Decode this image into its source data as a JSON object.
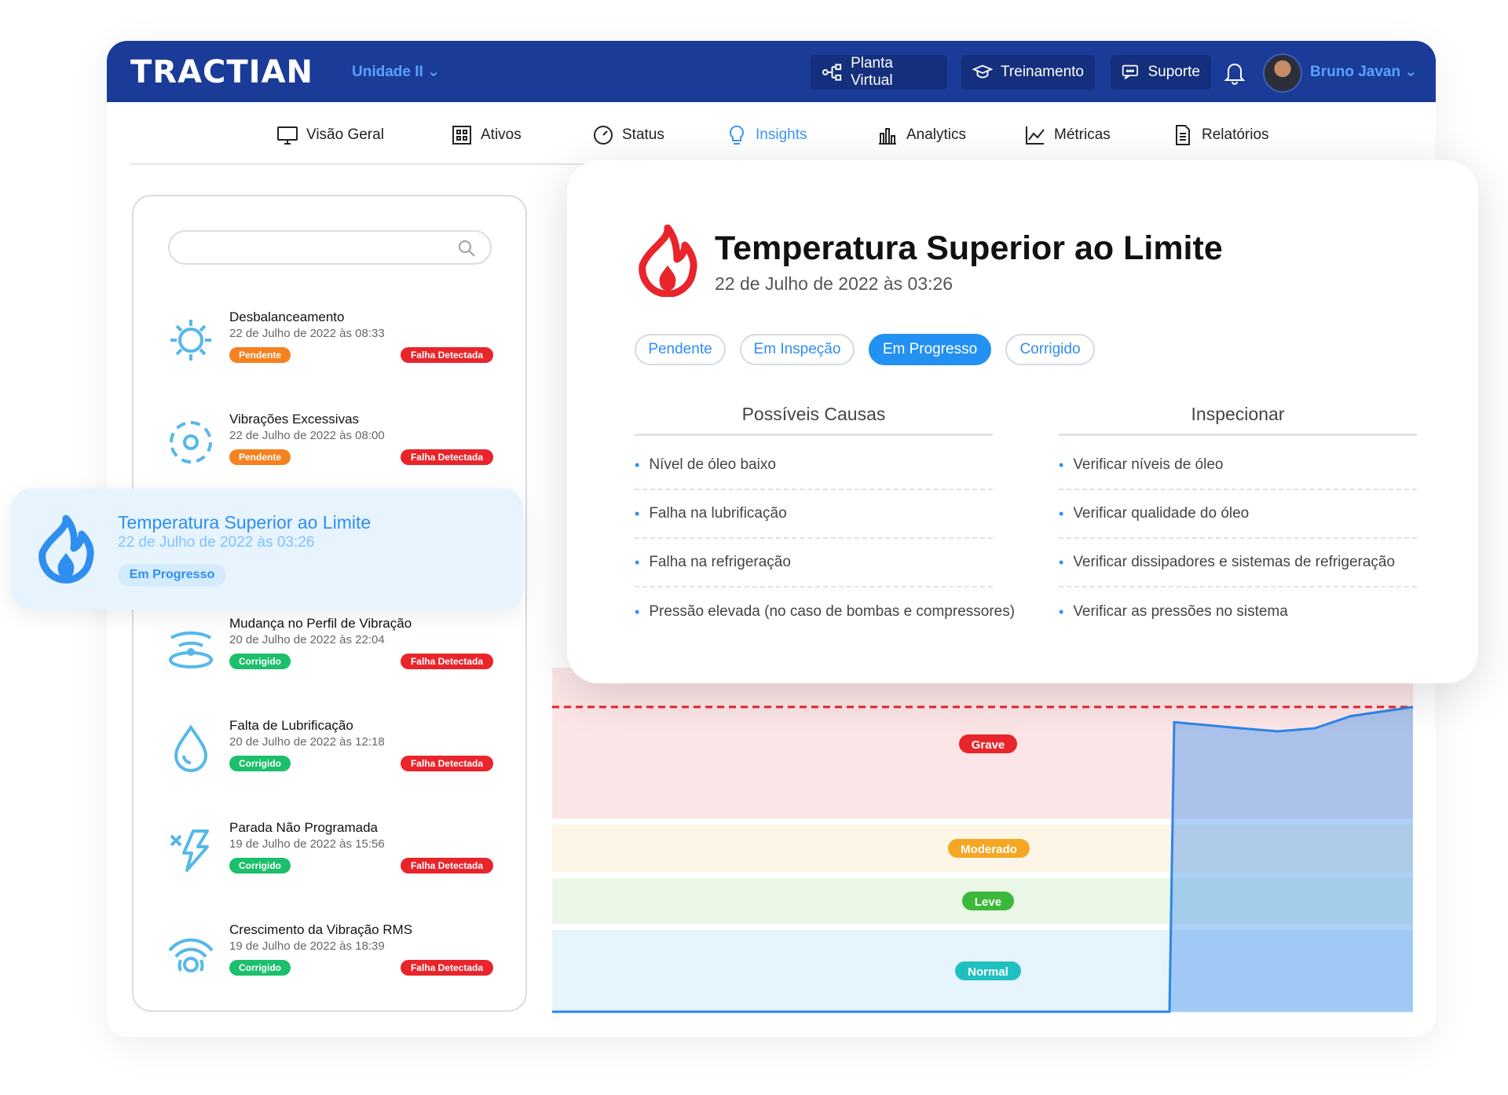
{
  "header": {
    "logo": "TRACTIAN",
    "unit": "Unidade II ⌄",
    "buttons": [
      {
        "label": "Planta Virtual",
        "icon": "network-icon"
      },
      {
        "label": "Treinamento",
        "icon": "graduation-cap-icon"
      },
      {
        "label": "Suporte",
        "icon": "chat-icon"
      }
    ],
    "user": "Bruno Javan ⌄"
  },
  "nav": [
    {
      "label": "Visão Geral",
      "icon": "monitor-icon"
    },
    {
      "label": "Ativos",
      "icon": "grid-box-icon"
    },
    {
      "label": "Status",
      "icon": "gauge-icon"
    },
    {
      "label": "Insights",
      "icon": "lightbulb-icon",
      "active": true
    },
    {
      "label": "Analytics",
      "icon": "bar-chart-icon"
    },
    {
      "label": "Métricas",
      "icon": "line-chart-icon"
    },
    {
      "label": "Relatórios",
      "icon": "document-icon"
    }
  ],
  "search": {
    "placeholder": ""
  },
  "list": [
    {
      "title": "Desbalanceamento",
      "date": "22 de Julho de 2022 às 08:33",
      "status": "Pendente",
      "flag": "Falha Detectada",
      "icon": "gear-icon"
    },
    {
      "title": "Vibrações Excessivas",
      "date": "22 de Julho de 2022 às 08:00",
      "status": "Pendente",
      "flag": "Falha Detectada",
      "icon": "vibration-icon"
    },
    {
      "title": "Mudança no Perfil de Vibração",
      "date": "20 de Julho de 2022 às 22:04",
      "status": "Corrigido",
      "flag": "Falha Detectada",
      "icon": "wave-icon"
    },
    {
      "title": "Falta de Lubrificação",
      "date": "20 de Julho de 2022 às 12:18",
      "status": "Corrigido",
      "flag": "Falha Detectada",
      "icon": "droplet-icon"
    },
    {
      "title": "Parada Não Programada",
      "date": "19 de Julho de 2022 às 15:56",
      "status": "Corrigido",
      "flag": "Falha Detectada",
      "icon": "lightning-icon"
    },
    {
      "title": "Crescimento da Vibração RMS",
      "date": "19 de Julho de 2022 às 18:39",
      "status": "Corrigido",
      "flag": "Falha Detectada",
      "icon": "signal-icon"
    }
  ],
  "selected": {
    "title": "Temperatura Superior ao Limite",
    "date": "22 de Julho de 2022 às 03:26",
    "status": "Em Progresso"
  },
  "detail": {
    "title": "Temperatura Superior ao Limite",
    "date": "22 de Julho de 2022 às 03:26",
    "statuses": [
      {
        "label": "Pendente",
        "active": false
      },
      {
        "label": "Em Inspeção",
        "active": false
      },
      {
        "label": "Em Progresso",
        "active": true
      },
      {
        "label": "Corrigido",
        "active": false
      }
    ],
    "causes_title": "Possíveis Causas",
    "causes": [
      "Nível de óleo baixo",
      "Falha na lubrificação",
      "Falha na refrigeração",
      "Pressão elevada (no caso de bombas e compressores)"
    ],
    "inspect_title": "Inspecionar",
    "inspect": [
      "Verificar níveis de óleo",
      "Verificar qualidade do óleo",
      "Verificar dissipadores e sistemas de refrigeração",
      "Verificar as pressões no sistema"
    ]
  },
  "chart_data": {
    "type": "area",
    "zones": [
      {
        "label": "Grave",
        "color": "#e8252b",
        "bg": "#fbe5e7"
      },
      {
        "label": "Moderado",
        "color": "#f5a623",
        "bg": "#fdf6e6"
      },
      {
        "label": "Leve",
        "color": "#3cb83a",
        "bg": "#eaf7e6"
      },
      {
        "label": "Normal",
        "color": "#21c0c0",
        "bg": "#e6f5fb"
      }
    ],
    "series_level": [
      0,
      0,
      0,
      0,
      0,
      0,
      0,
      0,
      0,
      0,
      0,
      0,
      0,
      0,
      0,
      0,
      0,
      0,
      0.95,
      0.93,
      0.92,
      0.93,
      0.97,
      1.0
    ]
  }
}
